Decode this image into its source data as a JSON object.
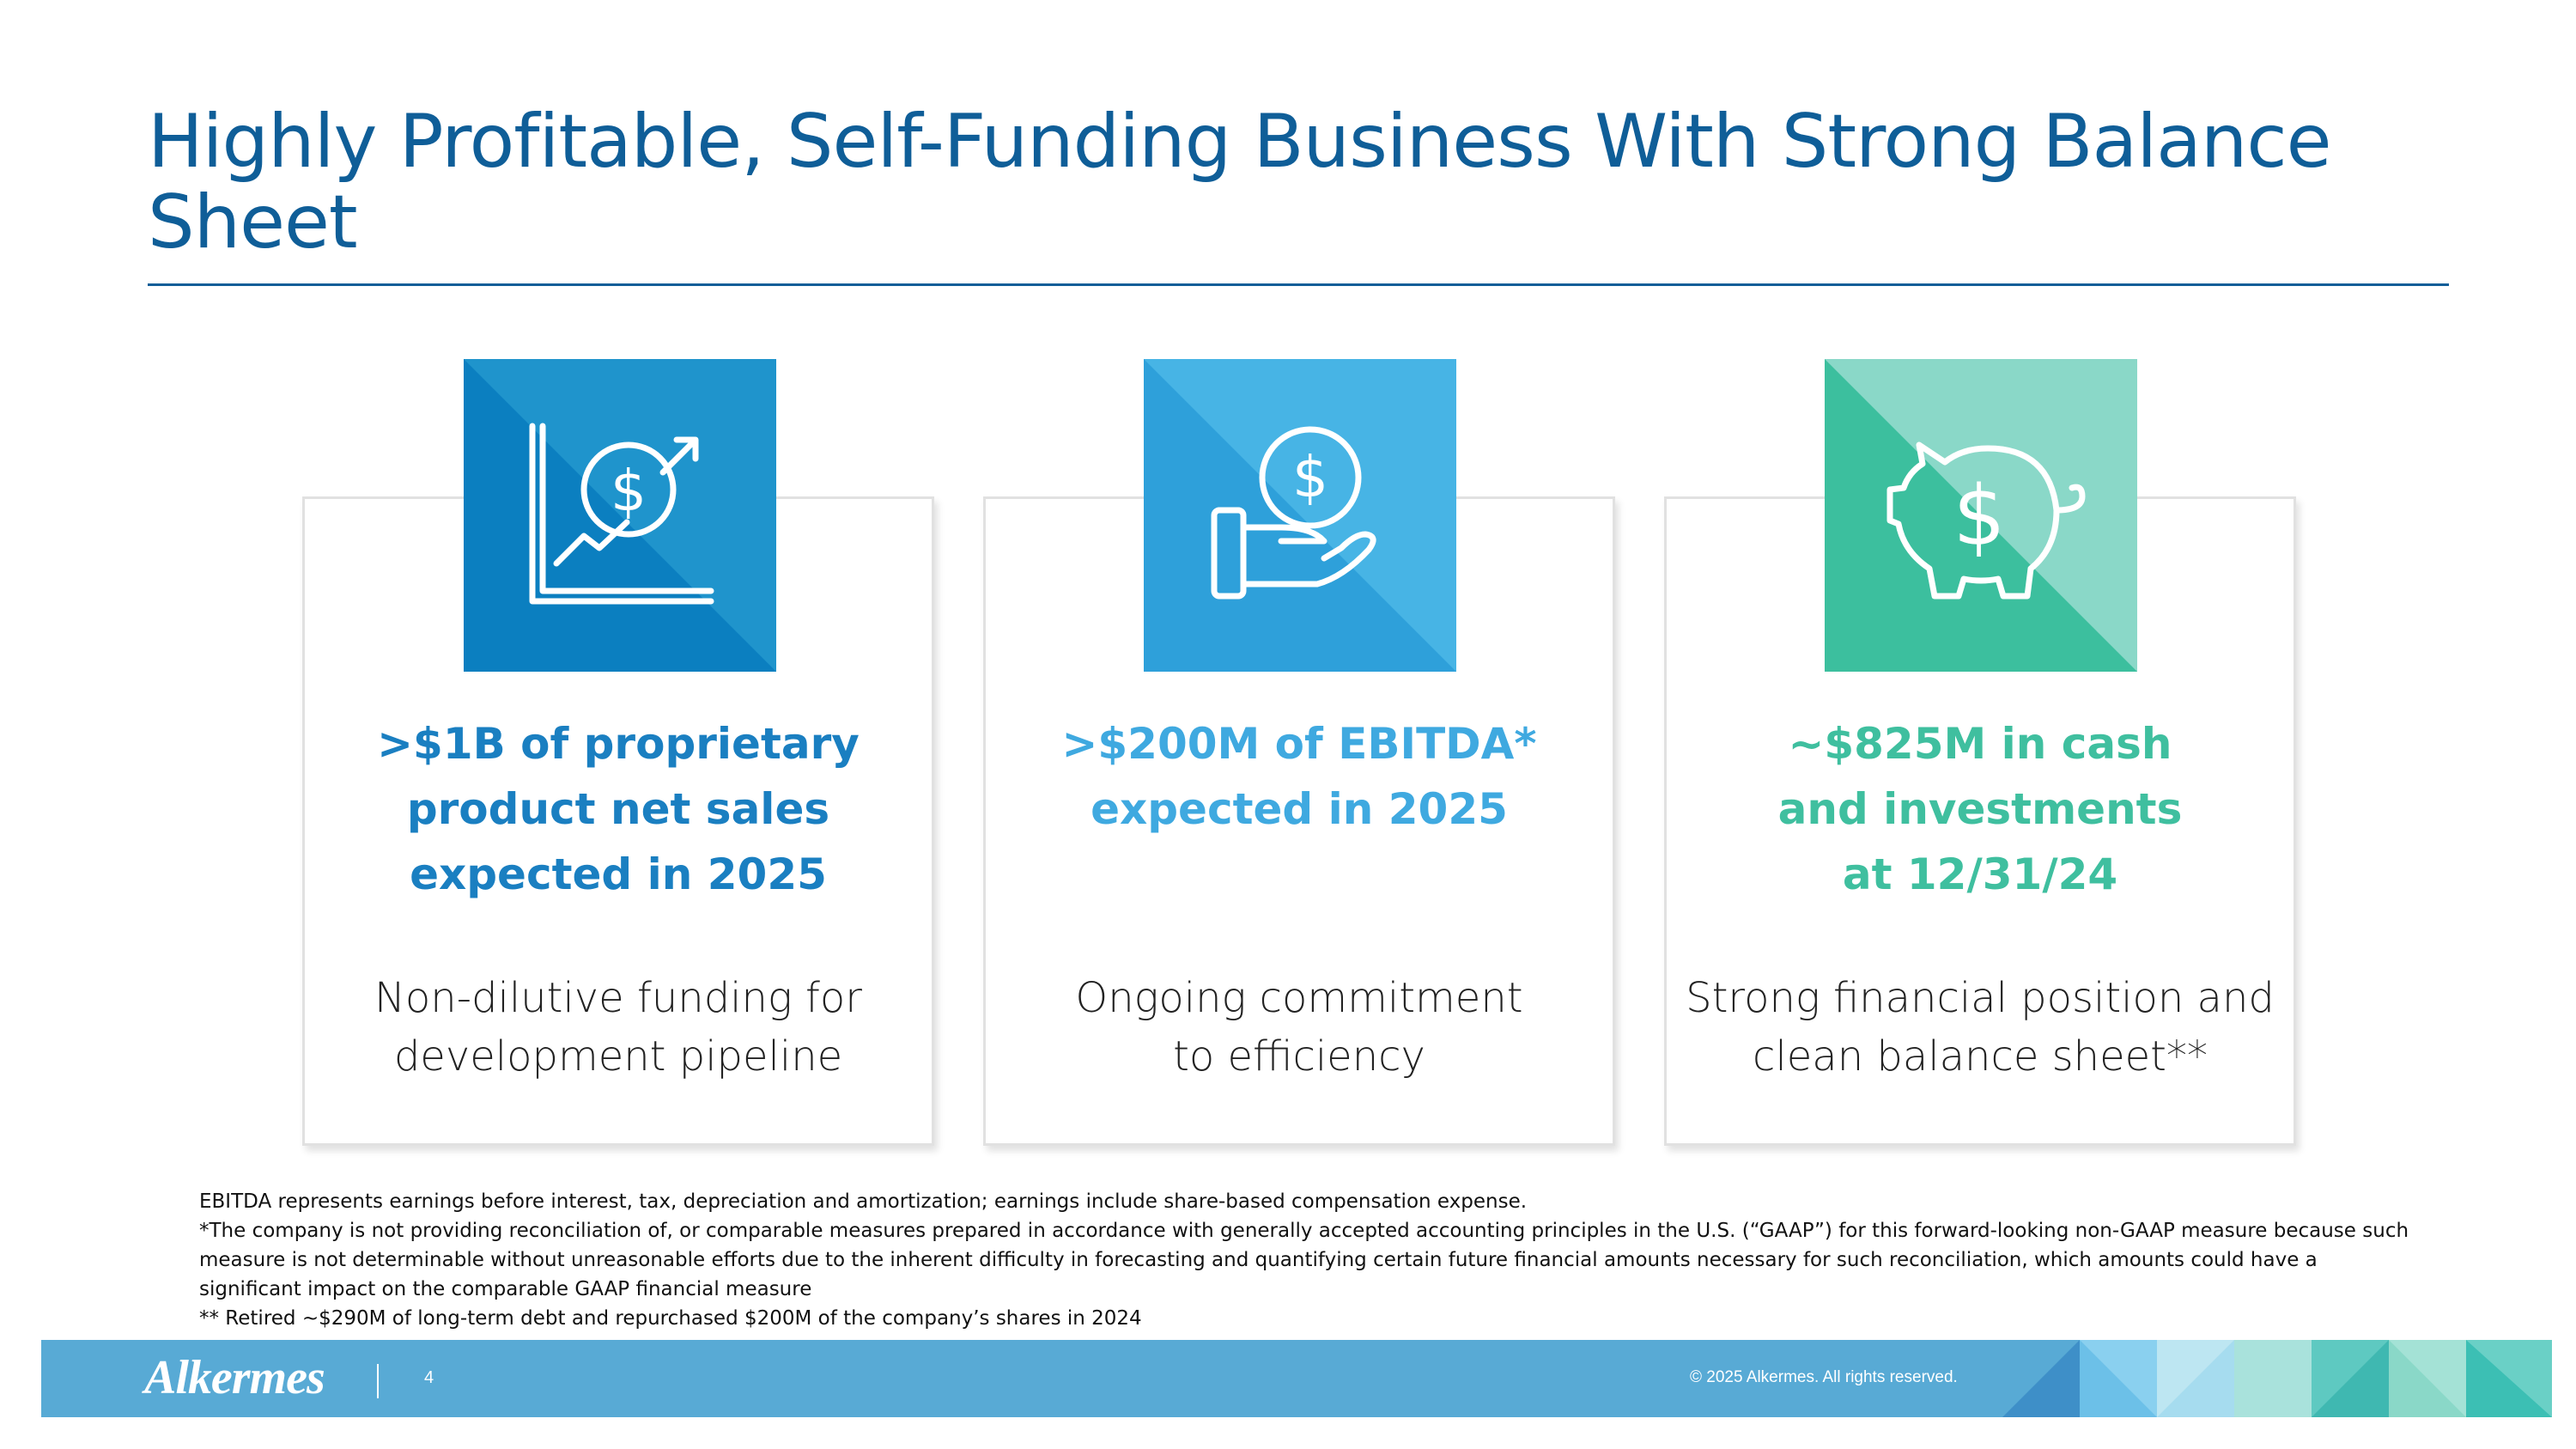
{
  "slide": {
    "title": "Highly Profitable, Self-Funding Business With Strong Balance Sheet"
  },
  "cards": [
    {
      "icon": "chart-dollar-arrow-icon",
      "color": "#1a7fc1",
      "headline": [
        ">$1B of proprietary",
        "product net sales",
        "expected in 2025"
      ],
      "sub": [
        "Non-dilutive funding for",
        "development pipeline"
      ]
    },
    {
      "icon": "hand-dollar-coin-icon",
      "color": "#3fa9e0",
      "headline": [
        ">$200M of EBITDA*",
        "expected in 2025"
      ],
      "sub": [
        "Ongoing commitment",
        "to efficiency"
      ]
    },
    {
      "icon": "piggy-bank-dollar-icon",
      "color": "#3fbf9f",
      "headline": [
        "~$825M in cash",
        "and investments",
        "at 12/31/24"
      ],
      "sub": [
        "Strong financial position and",
        "clean balance sheet**"
      ]
    }
  ],
  "footnotes": [
    "EBITDA represents earnings before interest, tax, depreciation and amortization; earnings include share-based compensation expense.",
    "*The company is not providing reconciliation of, or comparable measures prepared in accordance with generally accepted accounting principles in the U.S. (“GAAP”) for this forward-looking non-GAAP measure because such measure is not determinable without unreasonable efforts due to the inherent difficulty in forecasting and quantifying certain future financial amounts necessary for such reconciliation, which amounts could have a significant impact on the comparable GAAP financial measure",
    "** Retired ~$290M of long-term debt and repurchased $200M of the company’s shares in 2024"
  ],
  "footer": {
    "logo": "Alkermes",
    "page_number": "4",
    "copyright": "© 2025 Alkermes. All rights reserved.",
    "bar_color": "#58aad5"
  }
}
